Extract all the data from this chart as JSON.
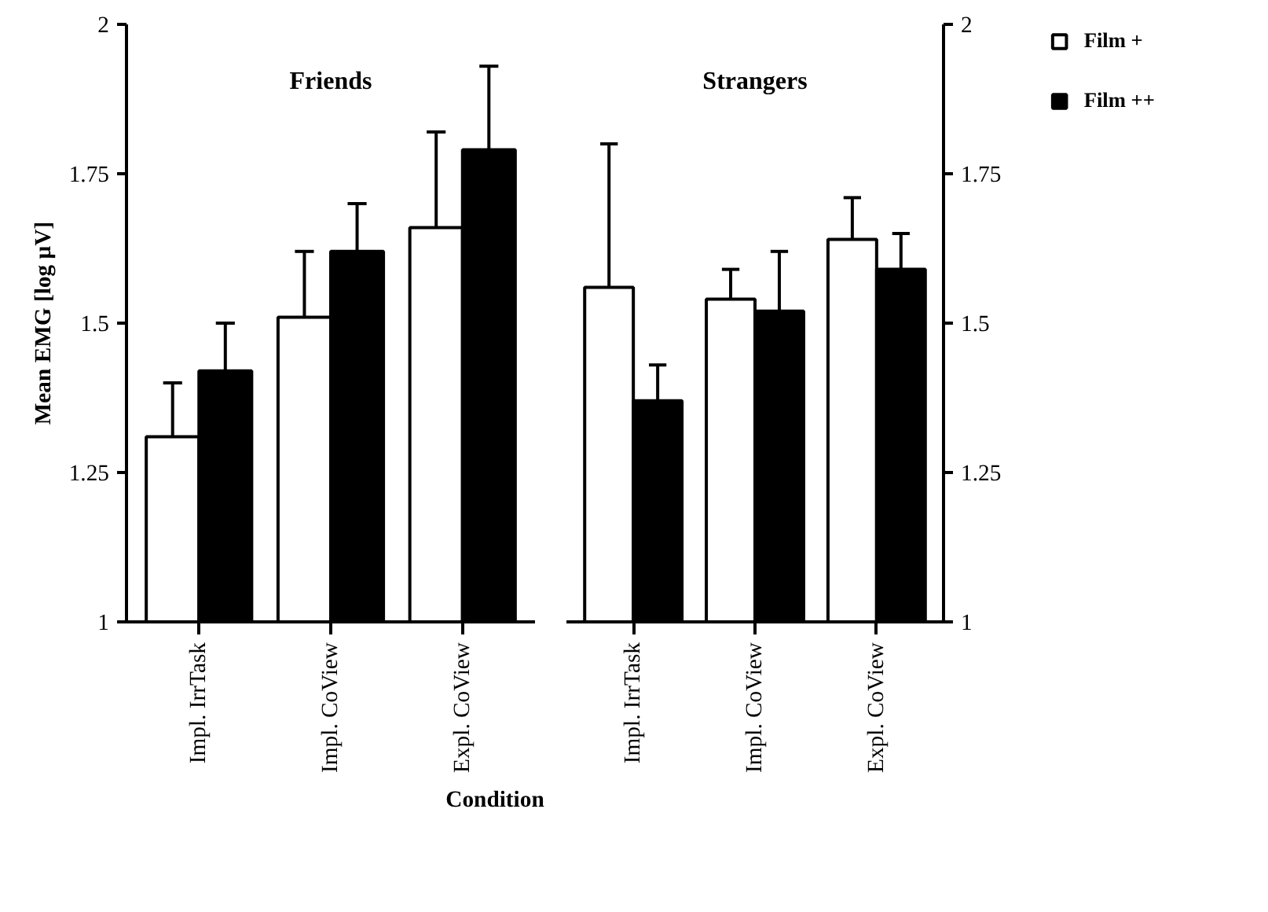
{
  "chart_data": [
    {
      "type": "bar",
      "title": "Friends",
      "ylabel": "Mean EMG [log µV]",
      "xlabel": "Condition",
      "categories": [
        "Impl. IrrTask",
        "Impl. CoView",
        "Expl. CoView"
      ],
      "ylim": [
        1,
        2
      ],
      "yticks": [
        1,
        1.25,
        1.5,
        1.75,
        2
      ],
      "grid": false,
      "series": [
        {
          "color": "#ffffff",
          "values": [
            1.31,
            1.51,
            1.66
          ],
          "errors": [
            [
              1.31,
              1.4
            ],
            [
              1.51,
              1.62
            ],
            [
              1.66,
              1.82
            ]
          ]
        },
        {
          "color": "#000000",
          "values": [
            1.42,
            1.62,
            1.79
          ],
          "errors": [
            [
              1.42,
              1.5
            ],
            [
              1.62,
              1.7
            ],
            [
              1.79,
              1.93
            ]
          ]
        }
      ]
    },
    {
      "type": "bar",
      "title": "Strangers",
      "categories": [
        "Impl. IrrTask",
        "Impl. CoView",
        "Expl. CoView"
      ],
      "ylim": [
        1,
        2
      ],
      "yticks": [
        1,
        1.25,
        1.5,
        1.75,
        2
      ],
      "grid": false,
      "legend": "top right",
      "series": [
        {
          "name": "Film +",
          "color": "#ffffff",
          "values": [
            1.56,
            1.54,
            1.64
          ],
          "errors": [
            [
              1.56,
              1.8
            ],
            [
              1.54,
              1.59
            ],
            [
              1.64,
              1.71
            ]
          ]
        },
        {
          "name": "Film ++",
          "color": "#000000",
          "values": [
            1.37,
            1.52,
            1.59
          ],
          "errors": [
            [
              1.37,
              1.43
            ],
            [
              1.52,
              1.62
            ],
            [
              1.59,
              1.65
            ]
          ]
        }
      ]
    }
  ]
}
